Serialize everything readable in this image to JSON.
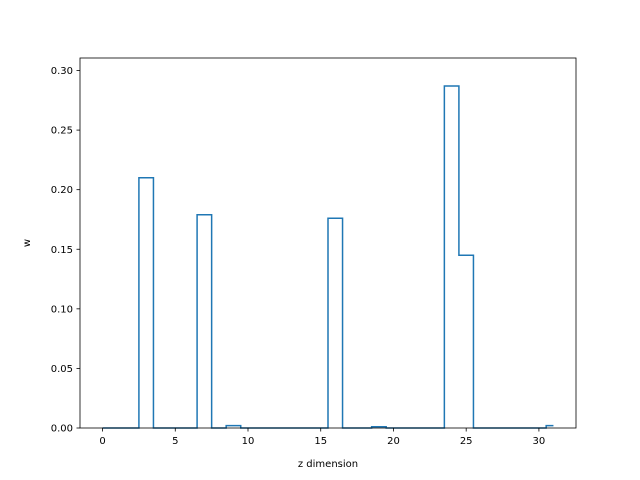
{
  "chart_data": {
    "type": "line",
    "drawstyle": "steps-mid",
    "xlabel": "z dimension",
    "ylabel": "w",
    "xlim": [
      -1.55,
      32.55
    ],
    "ylim": [
      0,
      0.3105
    ],
    "xticks": [
      0,
      5,
      10,
      15,
      20,
      25,
      30
    ],
    "yticks": [
      0.0,
      0.05,
      0.1,
      0.15,
      0.2,
      0.25,
      0.3
    ],
    "x": [
      0,
      1,
      2,
      3,
      4,
      5,
      6,
      7,
      8,
      9,
      10,
      11,
      12,
      13,
      14,
      15,
      16,
      17,
      18,
      19,
      20,
      21,
      22,
      23,
      24,
      25,
      26,
      27,
      28,
      29,
      30,
      31
    ],
    "series": [
      {
        "color": "#1f77b4",
        "values": [
          0,
          0,
          0,
          0.21,
          0,
          0,
          0,
          0.179,
          0,
          0.002,
          0,
          0,
          0,
          0,
          0,
          0,
          0.176,
          0,
          0,
          0.001,
          0,
          0,
          0,
          0,
          0.287,
          0.145,
          0,
          0,
          0,
          0,
          0,
          0.002
        ]
      }
    ],
    "grid": false,
    "legend": "none"
  }
}
